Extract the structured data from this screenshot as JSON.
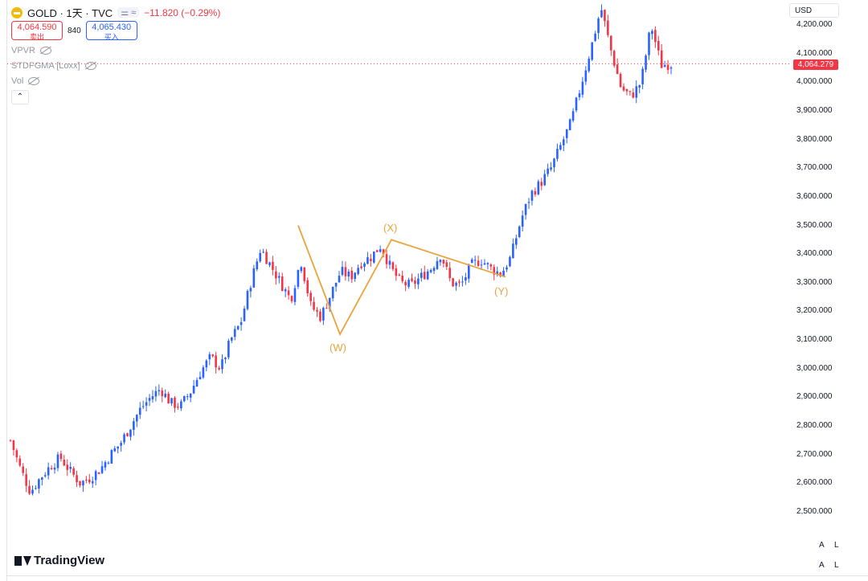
{
  "header": {
    "symbol_title": "GOLD · 1天 · TVC",
    "pill": "⚌ ≈",
    "change": "−11.820 (−0.29%)",
    "sell_price": "4,064.590",
    "sell_label": "卖出",
    "spread": "840",
    "buy_price": "4,065.430",
    "buy_label": "买入"
  },
  "indicators": [
    "VPVR",
    "STDFGMA [Loxx]",
    "Vol"
  ],
  "currency": "USD",
  "last_price_tag": "4,064.279",
  "brand": "TradingView",
  "scale_buttons": [
    "A",
    "L",
    "A",
    "L"
  ],
  "wave_labels": {
    "w": "(W)",
    "x": "(X)",
    "y": "(Y)"
  },
  "chart_data": {
    "type": "candlestick",
    "yticks": [
      "2,500.000",
      "2,600.000",
      "2,700.000",
      "2,800.000",
      "2,900.000",
      "3,000.000",
      "3,100.000",
      "3,200.000",
      "3,300.000",
      "3,400.000",
      "3,500.000",
      "3,600.000",
      "3,700.000",
      "3,800.000",
      "3,900.000",
      "4,000.000",
      "4,100.000",
      "4,200.000"
    ],
    "ylim": [
      2450,
      4270
    ],
    "last_price": 4064.279,
    "colors": {
      "up": "#2962ff",
      "down": "#f23645",
      "wave": "#e8a33c"
    },
    "close_path": [
      2750,
      2650,
      2570,
      2620,
      2660,
      2690,
      2640,
      2600,
      2620,
      2650,
      2700,
      2740,
      2800,
      2860,
      2900,
      2930,
      2880,
      2870,
      2920,
      2990,
      3040,
      3000,
      3100,
      3160,
      3300,
      3420,
      3360,
      3300,
      3240,
      3380,
      3220,
      3180,
      3260,
      3340,
      3320,
      3370,
      3390,
      3430,
      3350,
      3300,
      3290,
      3320,
      3350,
      3400,
      3300,
      3290,
      3360,
      3380,
      3350,
      3330,
      3390,
      3520,
      3610,
      3650,
      3700,
      3780,
      3860,
      3990,
      4120,
      4260,
      4110,
      3980,
      3950,
      4000,
      4200,
      4060,
      4064
    ],
    "wave_points": [
      [
        3500,
        0
      ],
      [
        3120,
        1
      ],
      [
        3450,
        2
      ],
      [
        3320,
        3
      ]
    ],
    "wave_label_names": [
      "(W)",
      "(X)",
      "(Y)"
    ]
  }
}
